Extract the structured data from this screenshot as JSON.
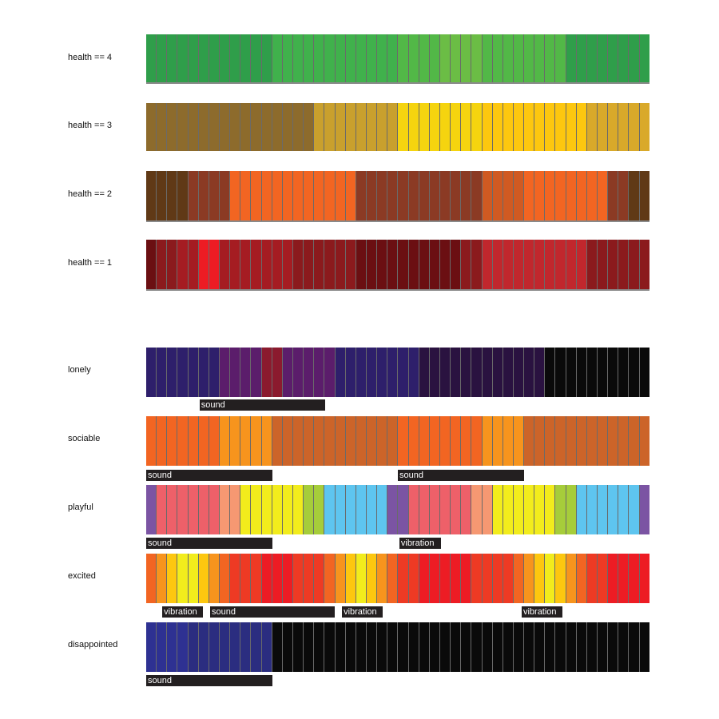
{
  "colors": {
    "health4": [
      "#2f9e4a",
      "#2f9e4a",
      "#2f9e4a",
      "#2f9e4a",
      "#2f9e4a",
      "#2f9e4a",
      "#2f9e4a",
      "#2f9e4a",
      "#2f9e4a",
      "#2f9e4a",
      "#2f9e4a",
      "#2f9e4a",
      "#40b14c",
      "#40b14c",
      "#40b14c",
      "#40b14c",
      "#40b14c",
      "#40b14c",
      "#40b14c",
      "#40b14c",
      "#40b14c",
      "#40b14c",
      "#40b14c",
      "#40b14c",
      "#52b847",
      "#52b847",
      "#52b847",
      "#52b847",
      "#6bbd45",
      "#6bbd45",
      "#6bbd45",
      "#6bbd45",
      "#52b847",
      "#52b847",
      "#52b847",
      "#52b847",
      "#52b847",
      "#52b847",
      "#52b847",
      "#52b847",
      "#2f9e4a",
      "#2f9e4a",
      "#2f9e4a",
      "#2f9e4a",
      "#2f9e4a",
      "#2f9e4a",
      "#2f9e4a",
      "#2f9e4a"
    ],
    "health3": [
      "#8d6b2c",
      "#8d6b2c",
      "#8d6b2c",
      "#8d6b2c",
      "#8d6b2c",
      "#8d6b2c",
      "#8d6b2c",
      "#8d6b2c",
      "#8d6b2c",
      "#8d6b2c",
      "#8d6b2c",
      "#8d6b2c",
      "#8d6b2c",
      "#8d6b2c",
      "#8d6b2c",
      "#8d6b2c",
      "#c9a02d",
      "#c9a02d",
      "#c9a02d",
      "#c9a02d",
      "#c9a02d",
      "#c9a02d",
      "#c9a02d",
      "#c9a02d",
      "#f5d40f",
      "#f5d40f",
      "#f5d40f",
      "#f5d40f",
      "#f5d40f",
      "#f5d40f",
      "#f5d40f",
      "#f5d40f",
      "#fdc70f",
      "#fdc70f",
      "#fdc70f",
      "#fdc70f",
      "#fdc70f",
      "#fdc70f",
      "#fdc70f",
      "#fdc70f",
      "#fdc70f",
      "#fdc70f",
      "#d9a92a",
      "#d9a92a",
      "#d9a92a",
      "#d9a92a",
      "#d9a92a",
      "#d9a92a"
    ],
    "health2": [
      "#603916",
      "#603916",
      "#603916",
      "#603916",
      "#8b3a24",
      "#8b3a24",
      "#8b3a24",
      "#8b3a24",
      "#f26522",
      "#f26522",
      "#f26522",
      "#f26522",
      "#f26522",
      "#f26522",
      "#f26522",
      "#f26522",
      "#f26522",
      "#f26522",
      "#f26522",
      "#f26522",
      "#8b3a24",
      "#8b3a24",
      "#8b3a24",
      "#8b3a24",
      "#8b3a24",
      "#8b3a24",
      "#8b3a24",
      "#8b3a24",
      "#8b3a24",
      "#8b3a24",
      "#8b3a24",
      "#8b3a24",
      "#d05a22",
      "#d05a22",
      "#d05a22",
      "#d05a22",
      "#f26522",
      "#f26522",
      "#f26522",
      "#f26522",
      "#f26522",
      "#f26522",
      "#f26522",
      "#f26522",
      "#8b3a24",
      "#8b3a24",
      "#603916",
      "#603916"
    ],
    "health1": [
      "#6b0f12",
      "#8b1a1d",
      "#8b1a1d",
      "#a51c22",
      "#a51c22",
      "#ed1c24",
      "#ed1c24",
      "#a51c22",
      "#a51c22",
      "#a51c22",
      "#a51c22",
      "#a51c22",
      "#a51c22",
      "#a51c22",
      "#8b1a1d",
      "#8b1a1d",
      "#8b1a1d",
      "#8b1a1d",
      "#8b1a1d",
      "#8b1a1d",
      "#6b0f12",
      "#6b0f12",
      "#6b0f12",
      "#6b0f12",
      "#6b0f12",
      "#6b0f12",
      "#6b0f12",
      "#6b0f12",
      "#6b0f12",
      "#6b0f12",
      "#8b1a1d",
      "#8b1a1d",
      "#c1272d",
      "#c1272d",
      "#c1272d",
      "#c1272d",
      "#c1272d",
      "#c1272d",
      "#c1272d",
      "#c1272d",
      "#c1272d",
      "#c1272d",
      "#8b1a1d",
      "#8b1a1d",
      "#8b1a1d",
      "#8b1a1d",
      "#8b1a1d",
      "#8b1a1d"
    ],
    "lonely": [
      "#2e1f6b",
      "#2e1f6b",
      "#2e1f6b",
      "#2e1f6b",
      "#2e1f6b",
      "#2e1f6b",
      "#2e1f6b",
      "#5b1d6b",
      "#5b1d6b",
      "#5b1d6b",
      "#5b1d6b",
      "#8b1a2e",
      "#8b1a2e",
      "#5b1d6b",
      "#5b1d6b",
      "#5b1d6b",
      "#5b1d6b",
      "#5b1d6b",
      "#2e1f6b",
      "#2e1f6b",
      "#2e1f6b",
      "#2e1f6b",
      "#2e1f6b",
      "#2e1f6b",
      "#2e1f6b",
      "#2e1f6b",
      "#2a1240",
      "#2a1240",
      "#2a1240",
      "#2a1240",
      "#2a1240",
      "#2a1240",
      "#2a1240",
      "#2a1240",
      "#2a1240",
      "#2a1240",
      "#2a1240",
      "#2a1240",
      "#0a0a0a",
      "#0a0a0a",
      "#0a0a0a",
      "#0a0a0a",
      "#0a0a0a",
      "#0a0a0a",
      "#0a0a0a",
      "#0a0a0a",
      "#0a0a0a",
      "#0a0a0a"
    ],
    "sociable": [
      "#f26522",
      "#f26522",
      "#f26522",
      "#f26522",
      "#f26522",
      "#f26522",
      "#f26522",
      "#f7941d",
      "#f7941d",
      "#f7941d",
      "#f7941d",
      "#f7941d",
      "#cc6429",
      "#cc6429",
      "#cc6429",
      "#cc6429",
      "#cc6429",
      "#cc6429",
      "#cc6429",
      "#cc6429",
      "#cc6429",
      "#cc6429",
      "#cc6429",
      "#cc6429",
      "#f26522",
      "#f26522",
      "#f26522",
      "#f26522",
      "#f26522",
      "#f26522",
      "#f26522",
      "#f26522",
      "#f7941d",
      "#f7941d",
      "#f7941d",
      "#f7941d",
      "#cc6429",
      "#cc6429",
      "#cc6429",
      "#cc6429",
      "#cc6429",
      "#cc6429",
      "#cc6429",
      "#cc6429",
      "#cc6429",
      "#cc6429",
      "#cc6429",
      "#cc6429"
    ],
    "playful": [
      "#7b54a3",
      "#ee6069",
      "#ee6069",
      "#ee6069",
      "#ee6069",
      "#ee6069",
      "#ee6069",
      "#f69872",
      "#f69872",
      "#f2ec1c",
      "#f2ec1c",
      "#f2ec1c",
      "#f2ec1c",
      "#f2ec1c",
      "#f2ec1c",
      "#a6cd3a",
      "#a6cd3a",
      "#5ec5ef",
      "#5ec5ef",
      "#5ec5ef",
      "#5ec5ef",
      "#5ec5ef",
      "#5ec5ef",
      "#7b54a3",
      "#7b54a3",
      "#ee6069",
      "#ee6069",
      "#ee6069",
      "#ee6069",
      "#ee6069",
      "#ee6069",
      "#f69872",
      "#f69872",
      "#f2ec1c",
      "#f2ec1c",
      "#f2ec1c",
      "#f2ec1c",
      "#f2ec1c",
      "#f2ec1c",
      "#a6cd3a",
      "#a6cd3a",
      "#5ec5ef",
      "#5ec5ef",
      "#5ec5ef",
      "#5ec5ef",
      "#5ec5ef",
      "#5ec5ef",
      "#7b54a3"
    ],
    "excited": [
      "#f26522",
      "#f7941d",
      "#fdc70f",
      "#f2ec1c",
      "#f2ec1c",
      "#fdc70f",
      "#f7941d",
      "#f26522",
      "#ee3a24",
      "#ee3a24",
      "#ee3a24",
      "#ed1c24",
      "#ed1c24",
      "#ed1c24",
      "#ee3a24",
      "#ee3a24",
      "#ee3a24",
      "#f26522",
      "#f7941d",
      "#fdc70f",
      "#f2ec1c",
      "#fdc70f",
      "#f7941d",
      "#f26522",
      "#ee3a24",
      "#ee3a24",
      "#ed1c24",
      "#ed1c24",
      "#ed1c24",
      "#ed1c24",
      "#ed1c24",
      "#ee3a24",
      "#ee3a24",
      "#ee3a24",
      "#ee3a24",
      "#f26522",
      "#f7941d",
      "#fdc70f",
      "#f2ec1c",
      "#fdc70f",
      "#f7941d",
      "#f26522",
      "#ee3a24",
      "#ee3a24",
      "#ed1c24",
      "#ed1c24",
      "#ed1c24",
      "#ed1c24"
    ],
    "disappointed": [
      "#2e3192",
      "#2e3192",
      "#2e3192",
      "#2e3192",
      "#2b2d80",
      "#2b2d80",
      "#2b2d80",
      "#2b2d80",
      "#2b2d80",
      "#2b2d80",
      "#2b2d80",
      "#2b2d80",
      "#0a0a0a",
      "#0a0a0a",
      "#0a0a0a",
      "#0a0a0a",
      "#0a0a0a",
      "#0a0a0a",
      "#0a0a0a",
      "#0a0a0a",
      "#0a0a0a",
      "#0a0a0a",
      "#0a0a0a",
      "#0a0a0a",
      "#0a0a0a",
      "#0a0a0a",
      "#0a0a0a",
      "#0a0a0a",
      "#0a0a0a",
      "#0a0a0a",
      "#0a0a0a",
      "#0a0a0a",
      "#0a0a0a",
      "#0a0a0a",
      "#0a0a0a",
      "#0a0a0a",
      "#0a0a0a",
      "#0a0a0a",
      "#0a0a0a",
      "#0a0a0a",
      "#0a0a0a",
      "#0a0a0a",
      "#0a0a0a",
      "#0a0a0a",
      "#0a0a0a",
      "#0a0a0a",
      "#0a0a0a",
      "#0a0a0a"
    ]
  },
  "rows": [
    {
      "label": "health == 4"
    },
    {
      "label": "health == 3"
    },
    {
      "label": "health == 2"
    },
    {
      "label": "health == 1"
    },
    {
      "label": "lonely",
      "tags": [
        {
          "text": "sound",
          "start": 0.106,
          "end": 0.356
        }
      ]
    },
    {
      "label": "sociable",
      "tags": [
        {
          "text": "sound",
          "start": 0.0,
          "end": 0.25
        },
        {
          "text": "sound",
          "start": 0.5,
          "end": 0.75
        }
      ]
    },
    {
      "label": "playful",
      "tags": [
        {
          "text": "sound",
          "start": 0.0,
          "end": 0.25
        },
        {
          "text": "vibration",
          "start": 0.503,
          "end": 0.585
        }
      ]
    },
    {
      "label": "excited",
      "tags": [
        {
          "text": "vibration",
          "start": 0.032,
          "end": 0.113
        },
        {
          "text": "sound",
          "start": 0.127,
          "end": 0.375
        },
        {
          "text": "vibration",
          "start": 0.389,
          "end": 0.47
        },
        {
          "text": "vibration",
          "start": 0.746,
          "end": 0.827
        }
      ]
    },
    {
      "label": "disappointed",
      "tags": [
        {
          "text": "sound",
          "start": 0.0,
          "end": 0.25
        }
      ]
    }
  ]
}
